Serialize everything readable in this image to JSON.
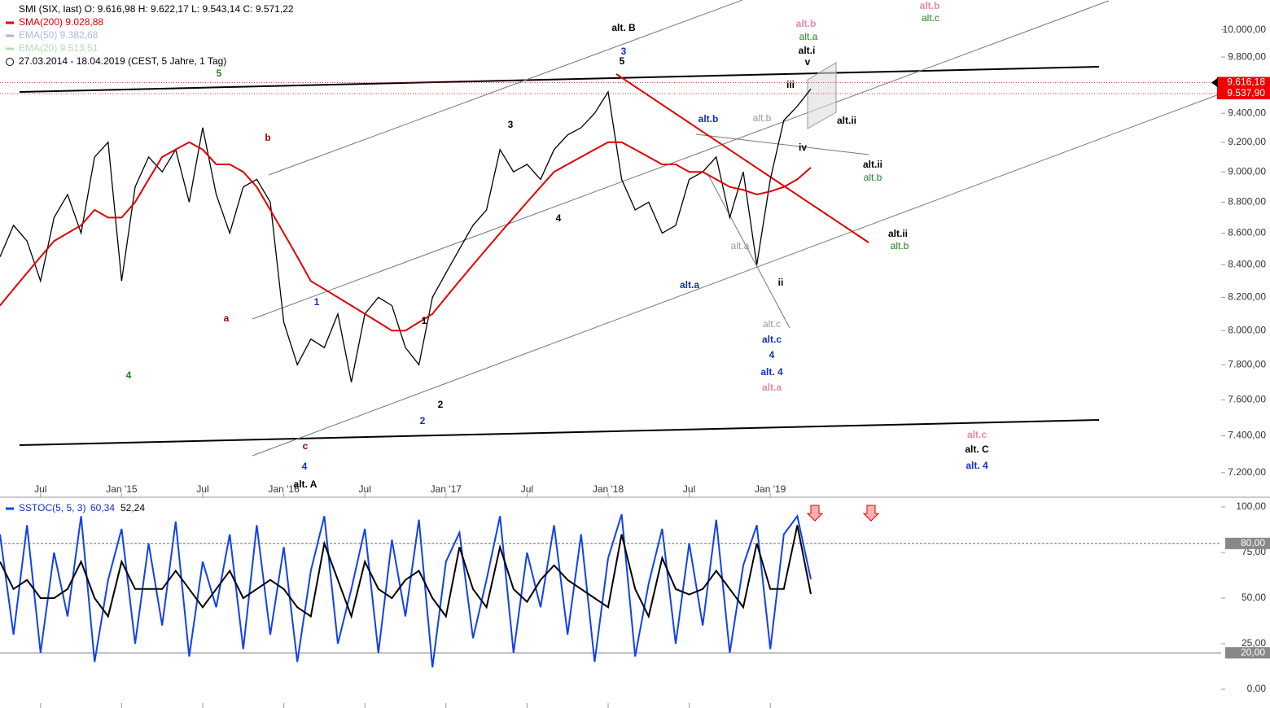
{
  "chart_data": [
    {
      "type": "line",
      "log": true,
      "header": [
        "SMI (SIX, last)  O: 9.616,98  H: 9.622,17  L: 9.543,14  C: 9.571,22",
        "SMA(200)  9.028,88",
        "EMA(50)  9.382,68",
        "EMA(20)  9.513,51",
        "27.03.2014 - 18.04.2019   (CEST, 5 Jahre, 1 Tag)"
      ],
      "header_colors": [
        "#000000",
        "#e00000",
        "#b4b4e6",
        "#b4dcb4",
        "#000000"
      ],
      "categories": [
        null,
        null,
        null,
        "Jul",
        null,
        null,
        null,
        null,
        null,
        "Jan '15",
        null,
        null,
        null,
        null,
        null,
        "Jul",
        null,
        null,
        null,
        null,
        null,
        "Jan '16",
        null,
        null,
        null,
        null,
        null,
        "Jul",
        null,
        null,
        null,
        null,
        null,
        "Jan '17",
        null,
        null,
        null,
        null,
        null,
        "Jul",
        null,
        null,
        null,
        null,
        null,
        "Jan '18",
        null,
        null,
        null,
        null,
        null,
        "Jul",
        null,
        null,
        null,
        null,
        null,
        "Jan '19",
        null,
        null,
        null
      ],
      "series": [
        {
          "color": "#000000",
          "values": [
            8450,
            8650,
            8550,
            8300,
            8700,
            8850,
            8600,
            9100,
            9200,
            8300,
            8900,
            9100,
            9000,
            9150,
            8800,
            9300,
            8850,
            8600,
            8900,
            8950,
            8800,
            8050,
            7800,
            7950,
            7900,
            8100,
            7700,
            8100,
            8200,
            8150,
            7900,
            7800,
            8200,
            8350,
            8500,
            8650,
            8750,
            9150,
            9000,
            9050,
            8950,
            9150,
            9250,
            9300,
            9400,
            9550,
            8950,
            8750,
            8800,
            8600,
            8650,
            8950,
            9000,
            9100,
            8700,
            9000,
            8400,
            8950,
            9350,
            9450,
            9571.22
          ]
        },
        {
          "color": "#e00000",
          "values": [
            8150,
            8250,
            8350,
            8450,
            8550,
            8600,
            8650,
            8750,
            8700,
            8700,
            8800,
            8950,
            9100,
            9150,
            9200,
            9150,
            9050,
            9050,
            9000,
            8900,
            8750,
            8600,
            8450,
            8300,
            8250,
            8200,
            8150,
            8100,
            8050,
            8000,
            8000,
            8050,
            8100,
            8200,
            8300,
            8400,
            8500,
            8600,
            8700,
            8800,
            8900,
            9000,
            9050,
            9100,
            9150,
            9200,
            9200,
            9150,
            9100,
            9050,
            9050,
            9000,
            9000,
            8950,
            8900,
            8880,
            8850,
            8870,
            8900,
            8950,
            9028.88
          ]
        }
      ],
      "ylim": [
        7100,
        10150
      ],
      "yticks": [
        {
          "value": 10000,
          "label": "10.000,00"
        },
        {
          "value": 9800,
          "label": "9.800,00"
        },
        {
          "value": 9400,
          "label": "9.400,00"
        },
        {
          "value": 9200,
          "label": "9.200,00"
        },
        {
          "value": 9000,
          "label": "9.000,00"
        },
        {
          "value": 8800,
          "label": "8.800,00"
        },
        {
          "value": 8600,
          "label": "8.600,00"
        },
        {
          "value": 8400,
          "label": "8.400,00"
        },
        {
          "value": 8200,
          "label": "8.200,00"
        },
        {
          "value": 8000,
          "label": "8.000,00"
        },
        {
          "value": 7800,
          "label": "7.800,00"
        },
        {
          "value": 7600,
          "label": "7.600,00"
        },
        {
          "value": 7400,
          "label": "7.400,00"
        },
        {
          "value": 7200,
          "label": "7.200,00"
        }
      ],
      "price_markers": [
        {
          "value": 9616.18,
          "label": "9.616,18"
        },
        {
          "value": 9537.9,
          "label": "9.537,90"
        }
      ],
      "annotations": [
        {
          "text": "alt. B",
          "color": "#000000"
        },
        {
          "text": "3",
          "color": "#1030c0"
        },
        {
          "text": "5",
          "color": "#000000"
        },
        {
          "text": "alt.b",
          "color": "#e888a8"
        },
        {
          "text": "alt.a",
          "color": "#208020"
        },
        {
          "text": "alt.i",
          "color": "#000000"
        },
        {
          "text": "v",
          "color": "#000000"
        },
        {
          "text": "alt.b",
          "color": "#e888a8"
        },
        {
          "text": "alt.c",
          "color": "#208020"
        },
        {
          "text": "5",
          "color": "#208020"
        },
        {
          "text": "b",
          "color": "#a00000"
        },
        {
          "text": "a",
          "color": "#a00000"
        },
        {
          "text": "c",
          "color": "#a00000"
        },
        {
          "text": "4",
          "color": "#1030c0"
        },
        {
          "text": "alt. A",
          "color": "#000000"
        },
        {
          "text": "4",
          "color": "#208020"
        },
        {
          "text": "1",
          "color": "#1030c0"
        },
        {
          "text": "2",
          "color": "#1030c0"
        },
        {
          "text": "1",
          "color": "#000000"
        },
        {
          "text": "2",
          "color": "#000000"
        },
        {
          "text": "3",
          "color": "#000000"
        },
        {
          "text": "4",
          "color": "#000000"
        },
        {
          "text": "alt.b",
          "color": "#1030c0"
        },
        {
          "text": "alt.b",
          "color": "#999999"
        },
        {
          "text": "iii",
          "color": "#000000"
        },
        {
          "text": "iv",
          "color": "#000000"
        },
        {
          "text": "alt.ii",
          "color": "#000000"
        },
        {
          "text": "alt.ii",
          "color": "#000000"
        },
        {
          "text": "alt.b",
          "color": "#208020"
        },
        {
          "text": "alt.ii",
          "color": "#000000"
        },
        {
          "text": "alt.b",
          "color": "#208020"
        },
        {
          "text": "alt.a",
          "color": "#999999"
        },
        {
          "text": "alt.a",
          "color": "#1030c0"
        },
        {
          "text": "ii",
          "color": "#000000"
        },
        {
          "text": "alt.c",
          "color": "#999999"
        },
        {
          "text": "alt.c",
          "color": "#1030c0"
        },
        {
          "text": "4",
          "color": "#1030c0"
        },
        {
          "text": "alt. 4",
          "color": "#1030c0"
        },
        {
          "text": "alt.a",
          "color": "#e888a8"
        },
        {
          "text": "alt.c",
          "color": "#e888a8"
        },
        {
          "text": "alt. C",
          "color": "#000000"
        },
        {
          "text": "alt. 4",
          "color": "#1030c0"
        }
      ]
    },
    {
      "type": "oscillator",
      "legend": [
        "SSTOC(5, 5, 3)",
        "60,34",
        "52,24"
      ],
      "series": [
        {
          "color": "#1040f0",
          "values": [
            85,
            30,
            90,
            20,
            75,
            40,
            95,
            15,
            60,
            88,
            25,
            80,
            35,
            92,
            18,
            70,
            45,
            85,
            22,
            90,
            30,
            78,
            15,
            65,
            95,
            25,
            55,
            88,
            20,
            82,
            40,
            93,
            12,
            70,
            86,
            28,
            60,
            95,
            20,
            75,
            45,
            90,
            30,
            85,
            15,
            72,
            96,
            18,
            58,
            88,
            25,
            80,
            35,
            93,
            20,
            68,
            90,
            22,
            85,
            95,
            60.34
          ]
        },
        {
          "color": "#000000",
          "values": [
            70,
            55,
            60,
            50,
            50,
            55,
            70,
            50,
            40,
            70,
            55,
            55,
            55,
            65,
            55,
            45,
            55,
            65,
            50,
            55,
            60,
            55,
            45,
            40,
            80,
            60,
            40,
            70,
            55,
            50,
            60,
            65,
            50,
            40,
            78,
            55,
            45,
            78,
            55,
            48,
            60,
            68,
            60,
            55,
            50,
            45,
            85,
            55,
            40,
            72,
            55,
            52,
            55,
            65,
            55,
            45,
            80,
            55,
            55,
            90,
            52.24
          ]
        }
      ],
      "ylim": [
        0,
        100
      ],
      "yticks": [
        {
          "value": 0,
          "label": "0,00"
        },
        {
          "value": 25,
          "label": "25,00"
        },
        {
          "value": 50,
          "label": "50,00"
        },
        {
          "value": 75,
          "label": "75,00"
        },
        {
          "value": 100,
          "label": "100,00"
        }
      ],
      "levels": [
        {
          "value": 80,
          "label": "80,00"
        },
        {
          "value": 20,
          "label": "20,00"
        }
      ]
    }
  ]
}
